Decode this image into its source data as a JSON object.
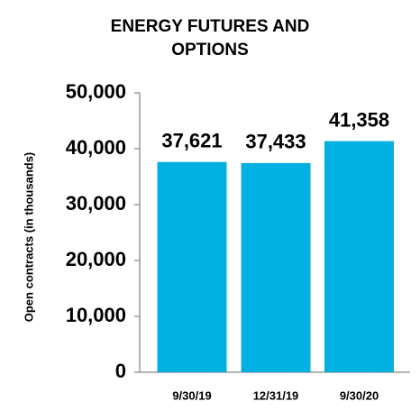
{
  "chart_data": {
    "type": "bar",
    "title": "ENERGY FUTURES AND OPTIONS",
    "y_label": "Open contracts (in thousands)",
    "categories": [
      "9/30/19",
      "12/31/19",
      "9/30/20"
    ],
    "values": [
      37621,
      37433,
      41358
    ],
    "value_labels": [
      "37,621",
      "37,433",
      "41,358"
    ],
    "color": "#00b0e0",
    "ylim": [
      0,
      50000
    ],
    "yticks": [
      0,
      {
        "value": 10000,
        "label": "10,000"
      },
      {
        "value": 20000,
        "label": "20,000"
      },
      {
        "value": 30000,
        "label": "30,000"
      },
      {
        "value": 40000,
        "label": "40,000"
      },
      {
        "value": 50000,
        "label": "50,000"
      }
    ]
  }
}
